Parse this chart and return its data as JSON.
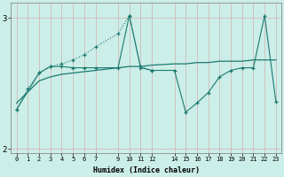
{
  "xlabel": "Humidex (Indice chaleur)",
  "background_color": "#cceee8",
  "line_color": "#1a7a6e",
  "xlim": [
    -0.5,
    23.5
  ],
  "ylim": [
    1.97,
    3.12
  ],
  "yticks": [
    2,
    3
  ],
  "xticks": [
    0,
    1,
    2,
    3,
    4,
    5,
    6,
    7,
    9,
    10,
    11,
    12,
    14,
    15,
    16,
    17,
    18,
    19,
    20,
    21,
    22,
    23
  ],
  "line_dotted_x": [
    0,
    1,
    2,
    3,
    4,
    5,
    6,
    7,
    9,
    10,
    11,
    12
  ],
  "line_dotted_y": [
    2.3,
    2.46,
    2.58,
    2.63,
    2.65,
    2.68,
    2.72,
    2.78,
    2.88,
    3.02,
    2.63,
    2.6
  ],
  "line_solid_x": [
    0,
    2,
    3,
    4,
    5,
    6,
    7,
    9,
    10,
    11,
    12,
    14,
    15,
    16,
    17,
    18,
    19,
    20,
    21,
    22,
    23
  ],
  "line_solid_y": [
    2.3,
    2.58,
    2.63,
    2.63,
    2.62,
    2.62,
    2.62,
    2.62,
    3.02,
    2.62,
    2.6,
    2.6,
    2.28,
    2.35,
    2.43,
    2.55,
    2.6,
    2.62,
    2.62,
    3.02,
    2.36
  ],
  "line_trend_x": [
    0,
    2,
    3,
    4,
    5,
    6,
    7,
    9,
    10,
    11,
    12,
    14,
    15,
    16,
    17,
    18,
    19,
    20,
    21,
    22,
    23
  ],
  "line_trend_y": [
    2.35,
    2.52,
    2.55,
    2.57,
    2.58,
    2.59,
    2.6,
    2.62,
    2.63,
    2.63,
    2.64,
    2.65,
    2.65,
    2.66,
    2.66,
    2.67,
    2.67,
    2.67,
    2.68,
    2.68,
    2.68
  ]
}
